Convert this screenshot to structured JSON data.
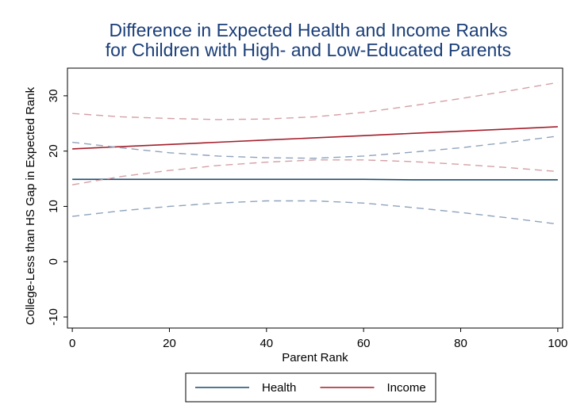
{
  "chart_data": {
    "type": "line",
    "title_line1": "Difference in Expected Health and Income Ranks",
    "title_line2": "for Children with High- and Low-Educated Parents",
    "xlabel": "Parent Rank",
    "ylabel": "College-Less than HS Gap in Expected Rank",
    "xlim": [
      -1,
      101
    ],
    "ylim": [
      -12,
      35
    ],
    "xticks": [
      0,
      20,
      40,
      60,
      80,
      100
    ],
    "yticks": [
      -10,
      0,
      10,
      20,
      30
    ],
    "grid": false,
    "legend_position": "bottom",
    "x": [
      0,
      10,
      20,
      30,
      40,
      50,
      60,
      70,
      80,
      90,
      100
    ],
    "series": [
      {
        "name": "Health",
        "color": "#1b4c6e",
        "style": "solid",
        "values": [
          14.9,
          14.9,
          14.9,
          14.9,
          14.9,
          14.9,
          14.9,
          14.8,
          14.8,
          14.8,
          14.8
        ]
      },
      {
        "name": "Income",
        "color": "#a31e2b",
        "style": "solid",
        "values": [
          20.4,
          20.8,
          21.2,
          21.6,
          22.0,
          22.4,
          22.8,
          23.2,
          23.6,
          24.0,
          24.4
        ]
      },
      {
        "name": "",
        "color": "#8fa3bb",
        "style": "dashed",
        "values": [
          21.6,
          20.6,
          19.7,
          19.1,
          18.8,
          18.7,
          19.1,
          19.8,
          20.6,
          21.6,
          22.7
        ]
      },
      {
        "name": "",
        "color": "#8fa3bb",
        "style": "dashed",
        "values": [
          8.2,
          9.2,
          10.0,
          10.6,
          11.0,
          11.0,
          10.6,
          9.8,
          8.9,
          7.9,
          6.8
        ]
      },
      {
        "name": "",
        "color": "#d4a0a6",
        "style": "dashed",
        "values": [
          26.8,
          26.2,
          25.9,
          25.7,
          25.8,
          26.2,
          27.0,
          28.2,
          29.5,
          30.9,
          32.4
        ]
      },
      {
        "name": "",
        "color": "#d4a0a6",
        "style": "dashed",
        "values": [
          13.9,
          15.4,
          16.5,
          17.4,
          18.0,
          18.4,
          18.4,
          18.1,
          17.6,
          17.0,
          16.3
        ]
      }
    ],
    "legend": [
      {
        "label": "Health",
        "color": "#1b4c6e"
      },
      {
        "label": "Income",
        "color": "#a31e2b"
      }
    ]
  }
}
